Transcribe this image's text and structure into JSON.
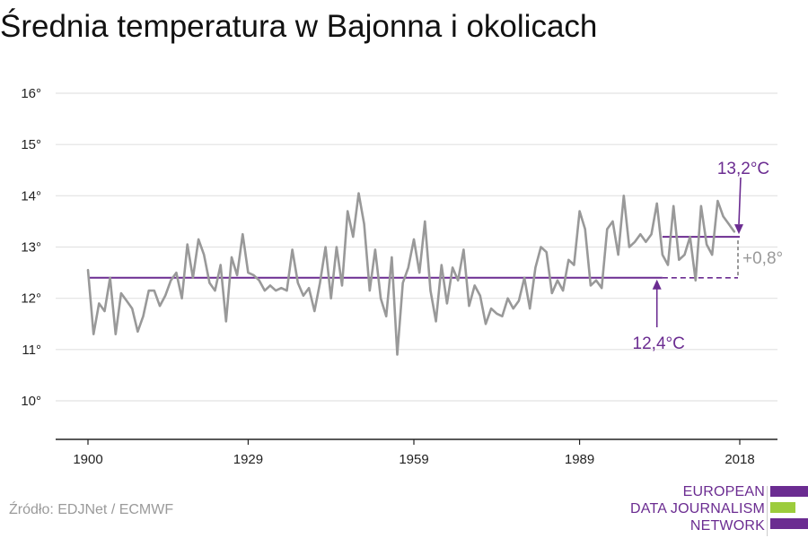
{
  "title": "Średnia temperatura w Bajonna i okolicach",
  "source": "Źródło: EDJNet / ECMWF",
  "logo": {
    "lines": [
      "EUROPEAN",
      "DATA JOURNALISM",
      "NETWORK"
    ],
    "colors": [
      "#6b2c91",
      "#9ccc3c",
      "#6b2c91"
    ]
  },
  "chart_data": {
    "type": "line",
    "title": "Średnia temperatura w Bajonna i okolicach",
    "xlabel": "",
    "ylabel": "",
    "xlim": [
      1900,
      2018
    ],
    "ylim": [
      10,
      16
    ],
    "x_ticks": [
      1900,
      1929,
      1959,
      1989,
      2018
    ],
    "x_tick_labels": [
      "1900",
      "1929",
      "1959",
      "1989",
      "2018"
    ],
    "y_ticks": [
      10,
      11,
      12,
      13,
      14,
      15,
      16
    ],
    "y_tick_labels": [
      "10°",
      "11°",
      "12°",
      "13°",
      "14°",
      "15°",
      "16°"
    ],
    "grid": true,
    "series": [
      {
        "color": "#999999",
        "x": [
          1900,
          1901,
          1902,
          1903,
          1904,
          1905,
          1906,
          1907,
          1908,
          1909,
          1910,
          1911,
          1912,
          1913,
          1914,
          1915,
          1916,
          1917,
          1918,
          1919,
          1920,
          1921,
          1922,
          1923,
          1924,
          1925,
          1926,
          1927,
          1928,
          1929,
          1930,
          1931,
          1932,
          1933,
          1934,
          1935,
          1936,
          1937,
          1938,
          1939,
          1940,
          1941,
          1942,
          1943,
          1944,
          1945,
          1946,
          1947,
          1948,
          1949,
          1950,
          1951,
          1952,
          1953,
          1954,
          1955,
          1956,
          1957,
          1958,
          1959,
          1960,
          1961,
          1962,
          1963,
          1964,
          1965,
          1966,
          1967,
          1968,
          1969,
          1970,
          1971,
          1972,
          1973,
          1974,
          1975,
          1976,
          1977,
          1978,
          1979,
          1980,
          1981,
          1982,
          1983,
          1984,
          1985,
          1986,
          1987,
          1988,
          1989,
          1990,
          1991,
          1992,
          1993,
          1994,
          1995,
          1996,
          1997,
          1998,
          1999,
          2000,
          2001,
          2002,
          2003,
          2004,
          2005,
          2006,
          2007,
          2008,
          2009,
          2010,
          2011,
          2012,
          2013,
          2014,
          2015,
          2016,
          2017
        ],
        "values": [
          12.55,
          11.3,
          11.9,
          11.75,
          12.4,
          11.3,
          12.1,
          11.95,
          11.8,
          11.35,
          11.65,
          12.15,
          12.15,
          11.85,
          12.05,
          12.35,
          12.5,
          12.0,
          13.05,
          12.4,
          13.15,
          12.85,
          12.3,
          12.15,
          12.65,
          11.55,
          12.8,
          12.45,
          13.25,
          12.5,
          12.45,
          12.35,
          12.15,
          12.25,
          12.15,
          12.2,
          12.15,
          12.95,
          12.3,
          12.05,
          12.2,
          11.75,
          12.3,
          13.0,
          12.0,
          13.0,
          12.25,
          13.7,
          13.2,
          14.05,
          13.45,
          12.15,
          12.95,
          12.0,
          11.65,
          12.8,
          10.9,
          12.3,
          12.6,
          13.15,
          12.5,
          13.5,
          12.15,
          11.55,
          12.65,
          11.9,
          12.6,
          12.35,
          12.95,
          11.85,
          12.25,
          12.05,
          11.5,
          11.8,
          11.7,
          11.65,
          12.0,
          11.8,
          11.95,
          12.4,
          11.8,
          12.6,
          13.0,
          12.9,
          12.1,
          12.35,
          12.15,
          12.75,
          12.65,
          13.7,
          13.35,
          12.25,
          12.35,
          12.2,
          13.35,
          13.5,
          12.85,
          14.0,
          13.0,
          13.1,
          13.25,
          13.1,
          13.25,
          13.85,
          12.85,
          12.65,
          13.8,
          12.75,
          12.85,
          13.2,
          12.35,
          13.8,
          13.05,
          12.85,
          13.9,
          13.6,
          13.45,
          13.3
        ]
      }
    ],
    "annotations": {
      "baseline": {
        "value": 12.4,
        "label": "12,4°C",
        "color": "#6b2c91"
      },
      "recent": {
        "value": 13.2,
        "label": "13,2°C",
        "color": "#6b2c91"
      },
      "difference": {
        "label": "+0,8°",
        "color": "#999999"
      }
    }
  }
}
